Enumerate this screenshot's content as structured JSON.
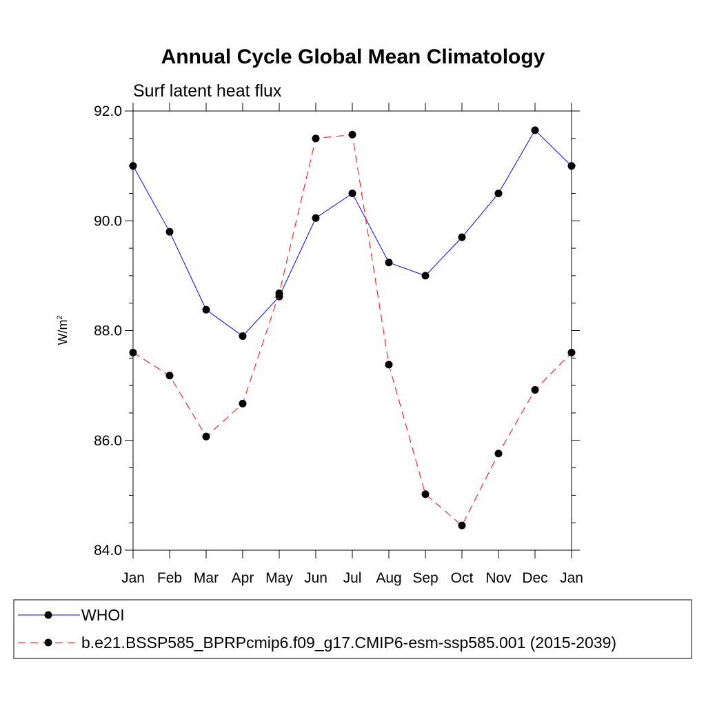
{
  "chart_data": {
    "type": "line",
    "title": "Annual Cycle Global Mean Climatology",
    "subtitle": "Surf latent heat flux",
    "ylabel_base": "W/m",
    "ylabel_sup": "2",
    "xlabel": "",
    "categories": [
      "Jan",
      "Feb",
      "Mar",
      "Apr",
      "May",
      "Jun",
      "Jul",
      "Aug",
      "Sep",
      "Oct",
      "Nov",
      "Dec",
      "Jan"
    ],
    "ylim": [
      84.0,
      92.0
    ],
    "yticks": [
      84.0,
      86.0,
      88.0,
      90.0,
      92.0
    ],
    "ytick_labels": [
      "84.0",
      "86.0",
      "88.0",
      "90.0",
      "92.0"
    ],
    "y_minor_step": 0.5,
    "series": [
      {
        "name": "WHOI",
        "color": "#0000ff",
        "dash": "solid",
        "marker": "circle",
        "values": [
          91.0,
          89.8,
          88.38,
          87.9,
          88.62,
          90.05,
          90.5,
          89.24,
          89.0,
          89.7,
          90.5,
          91.65,
          91.0
        ]
      },
      {
        "name": "b.e21.BSSP585_BPRPcmip6.f09_g17.CMIP6-esm-ssp585.001 (2015-2039)",
        "color": "#ff0000",
        "dash": "dashed",
        "marker": "circle",
        "values": [
          87.6,
          87.18,
          86.07,
          86.67,
          88.68,
          91.5,
          91.57,
          87.38,
          85.02,
          84.45,
          85.76,
          86.92,
          87.6
        ]
      }
    ],
    "legend_position": "bottom",
    "grid": false
  }
}
